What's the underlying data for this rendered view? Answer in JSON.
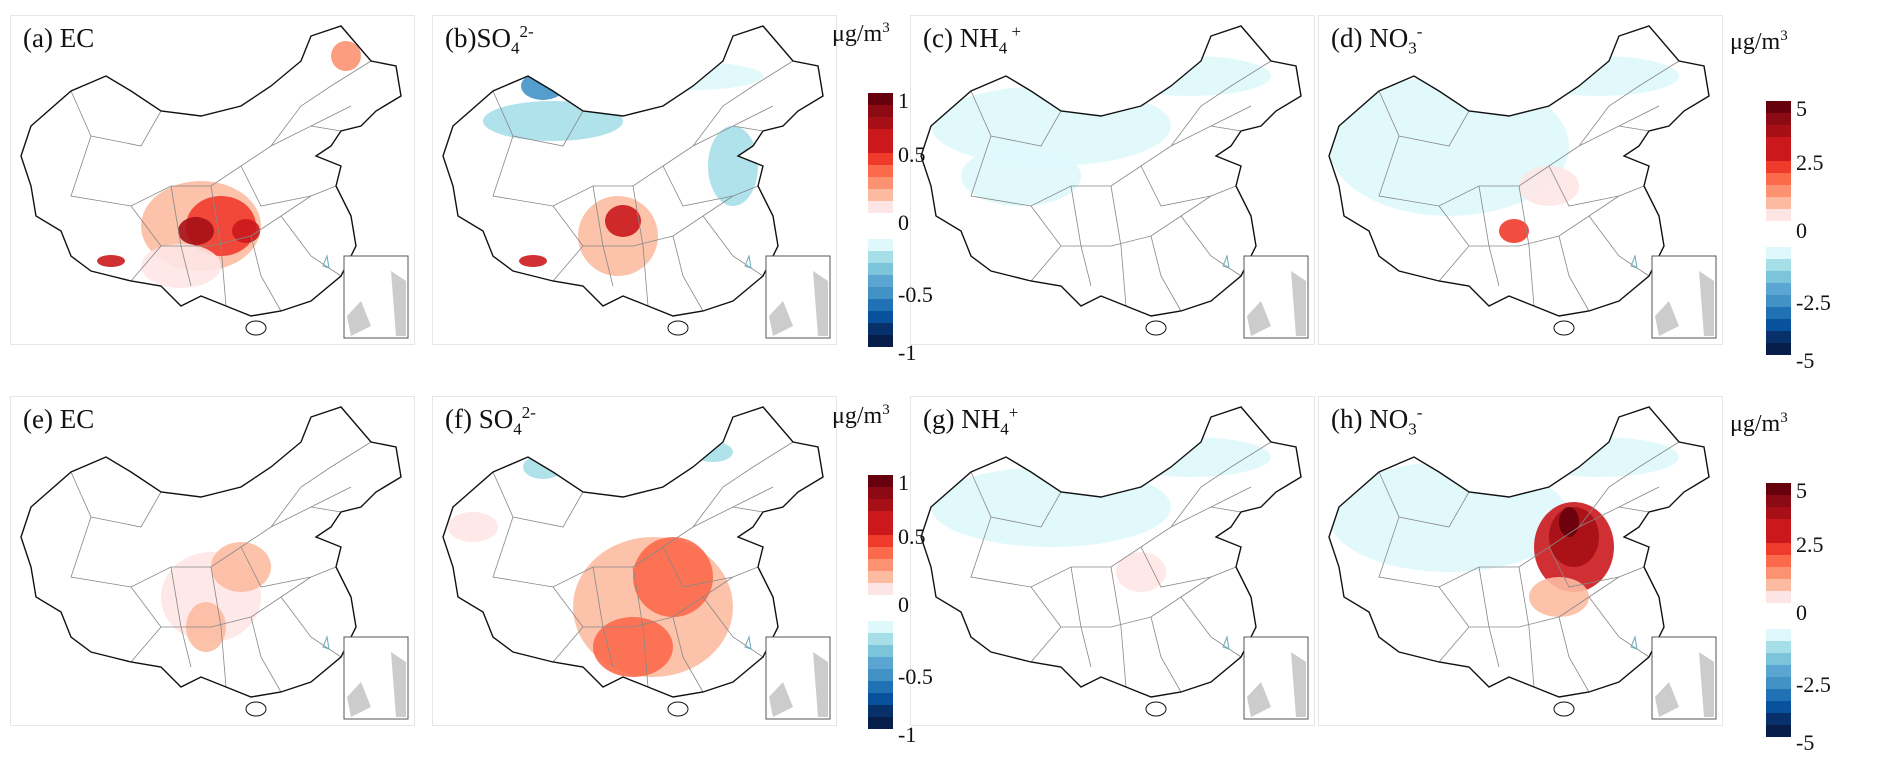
{
  "panels": [
    {
      "id": "a",
      "prefix": "(a) EC",
      "sub": "",
      "sup": ""
    },
    {
      "id": "b",
      "prefix": "(b)SO",
      "sub": "4",
      "sup": "2-"
    },
    {
      "id": "c",
      "prefix": "(c) NH",
      "sub": "4",
      "sup": " +"
    },
    {
      "id": "d",
      "prefix": "(d) NO",
      "sub": "3",
      "sup": "-"
    },
    {
      "id": "e",
      "prefix": "(e) EC",
      "sub": "",
      "sup": ""
    },
    {
      "id": "f",
      "prefix": "(f) SO",
      "sub": "4",
      "sup": "2-"
    },
    {
      "id": "g",
      "prefix": "(g) NH",
      "sub": "4",
      "sup": "+"
    },
    {
      "id": "h",
      "prefix": "(h) NO",
      "sub": "3",
      "sup": "-"
    }
  ],
  "colorbars": [
    {
      "unit": "μg/m",
      "unit_sup": "3",
      "ticks": [
        "1",
        "0.5",
        "0",
        "-0.5",
        "-1"
      ]
    },
    {
      "unit": "μg/m",
      "unit_sup": "3",
      "ticks": [
        "5",
        "2.5",
        "0",
        "-2.5",
        "-5"
      ]
    },
    {
      "unit": "μg/m",
      "unit_sup": "3",
      "ticks": [
        "1",
        "0.5",
        "0",
        "-0.5",
        "-1"
      ]
    },
    {
      "unit": "μg/m",
      "unit_sup": "3",
      "ticks": [
        "5",
        "2.5",
        "0",
        "-2.5",
        "-5"
      ]
    }
  ],
  "colors": {
    "reds": [
      "#67000d",
      "#8b0a14",
      "#a50f15",
      "#cb181d",
      "#cb181d",
      "#ef3b2c",
      "#fb6a4a",
      "#fc9272",
      "#fcbba1",
      "#fee5e5"
    ],
    "blues": [
      "#dff8fc",
      "#a6dfe8",
      "#7cc4da",
      "#5aa5d2",
      "#4292c6",
      "#2171b5",
      "#08519c",
      "#08306b",
      "#071d4a"
    ]
  }
}
